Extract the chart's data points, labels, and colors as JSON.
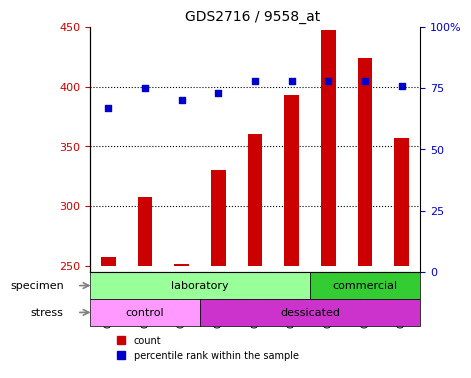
{
  "title": "GDS2716 / 9558_at",
  "categories": [
    "GSM21682",
    "GSM21683",
    "GSM21684",
    "GSM21688",
    "GSM21689",
    "GSM21690",
    "GSM21703",
    "GSM21704",
    "GSM21705"
  ],
  "counts": [
    258,
    308,
    252,
    330,
    360,
    393,
    447,
    424,
    357
  ],
  "percentile_ranks": [
    67,
    75,
    70,
    73,
    78,
    78,
    78,
    78,
    76
  ],
  "ylim_left": [
    245,
    450
  ],
  "ylim_right": [
    0,
    100
  ],
  "yticks_left": [
    250,
    300,
    350,
    400,
    450
  ],
  "yticks_right": [
    0,
    25,
    50,
    75,
    100
  ],
  "bar_color": "#cc0000",
  "dot_color": "#0000cc",
  "bar_bottom": 250,
  "specimen_groups": [
    {
      "label": "laboratory",
      "start": 0,
      "end": 6,
      "color": "#99ff99"
    },
    {
      "label": "commercial",
      "start": 6,
      "end": 9,
      "color": "#33cc33"
    }
  ],
  "stress_groups": [
    {
      "label": "control",
      "start": 0,
      "end": 3,
      "color": "#ff99ff"
    },
    {
      "label": "dessicated",
      "start": 3,
      "end": 9,
      "color": "#cc33cc"
    }
  ],
  "specimen_label": "specimen",
  "stress_label": "stress",
  "legend_count_label": "count",
  "legend_pct_label": "percentile rank within the sample",
  "tick_label_color_left": "#cc0000",
  "tick_label_color_right": "#0000cc",
  "grid_color": "#000000",
  "background_color": "#ffffff",
  "plot_bg_color": "#ffffff"
}
